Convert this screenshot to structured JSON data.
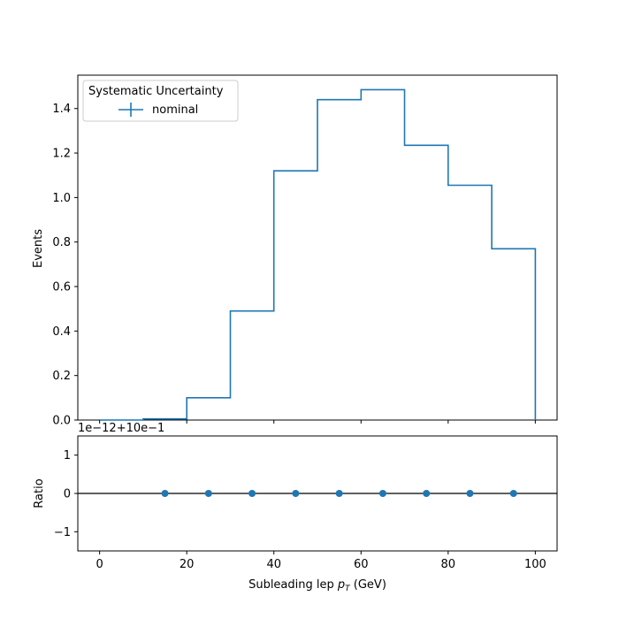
{
  "chart_data": [
    {
      "type": "line",
      "title": "",
      "xlabel": "",
      "ylabel": "Events",
      "xlim": [
        -5,
        105
      ],
      "ylim": [
        0,
        1.55
      ],
      "xticks": [
        "0",
        "20",
        "40",
        "60",
        "80",
        "100"
      ],
      "yticks": [
        "0.0",
        "0.2",
        "0.4",
        "0.6",
        "0.8",
        "1.0",
        "1.2",
        "1.4"
      ],
      "bin_edges": [
        0,
        10,
        20,
        30,
        40,
        50,
        60,
        70,
        80,
        90,
        100
      ],
      "series": [
        {
          "name": "nominal",
          "values": [
            0.0,
            0.005,
            0.1,
            0.49,
            1.12,
            1.44,
            1.485,
            1.235,
            1.055,
            0.77
          ],
          "color": "#1f77b4"
        }
      ],
      "legend": {
        "title": "Systematic Uncertainty",
        "position": "top-left"
      },
      "grid": false
    },
    {
      "type": "scatter",
      "xlabel": "Subleading lep p_T (GeV)",
      "xlabel_main": "Subleading lep ",
      "xlabel_sym": "p",
      "xlabel_sub": "T",
      "xlabel_unit": " (GeV)",
      "ylabel": "Ratio",
      "offset_text": "1e−12+10e−1",
      "xlim": [
        -5,
        105
      ],
      "ylim": [
        -1.5,
        1.5
      ],
      "xticks": [
        "0",
        "20",
        "40",
        "60",
        "80",
        "100"
      ],
      "yticks": [
        "−1",
        "0",
        "1"
      ],
      "x": [
        15,
        25,
        35,
        45,
        55,
        65,
        75,
        85,
        95
      ],
      "y": [
        0,
        0,
        0,
        0,
        0,
        0,
        0,
        0,
        0
      ],
      "reference_line": 0,
      "color": "#1f77b4",
      "grid": false
    }
  ]
}
